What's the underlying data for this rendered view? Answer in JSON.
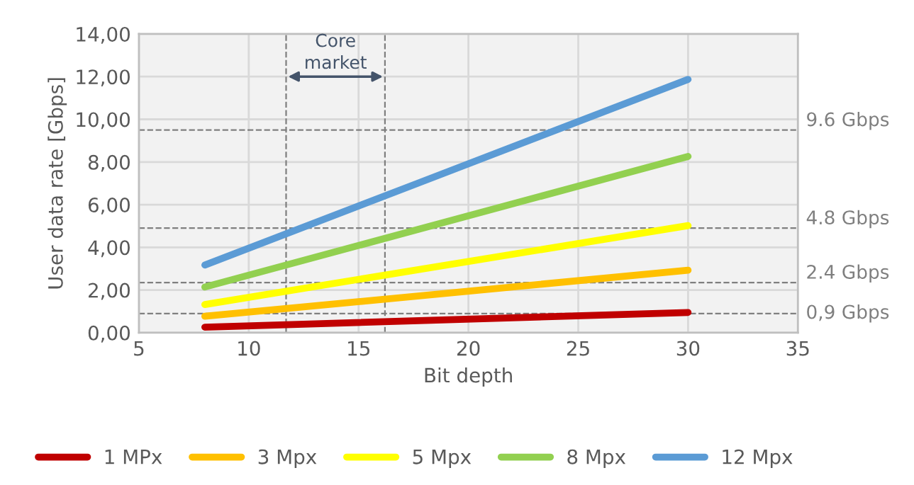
{
  "chart_data": {
    "type": "line",
    "xlabel": "Bit depth",
    "ylabel": "User data rate [Gbps]",
    "series": [
      {
        "name": "1 MPx",
        "color": "#c00000",
        "values": [
          0.26,
          0.95
        ]
      },
      {
        "name": "3 Mpx",
        "color": "#ffc000",
        "values": [
          0.77,
          2.93
        ]
      },
      {
        "name": "5 Mpx",
        "color": "#ffff00",
        "values": [
          1.32,
          5.02
        ]
      },
      {
        "name": "8 Mpx",
        "color": "#92d050",
        "values": [
          2.14,
          8.26
        ]
      },
      {
        "name": "12 Mpx",
        "color": "#5b9bd5",
        "values": [
          3.17,
          11.87
        ]
      }
    ],
    "x": [
      8,
      30
    ],
    "xlim": [
      5,
      35
    ],
    "xticks": [
      5,
      10,
      15,
      20,
      25,
      30,
      35
    ],
    "ylim": [
      0,
      14
    ],
    "yticks": [
      {
        "value": 0,
        "label": "0,00"
      },
      {
        "value": 2,
        "label": "2,00"
      },
      {
        "value": 4,
        "label": "4,00"
      },
      {
        "value": 6,
        "label": "6,00"
      },
      {
        "value": 8,
        "label": "8,00"
      },
      {
        "value": 10,
        "label": "10,00"
      },
      {
        "value": 12,
        "label": "12,00"
      },
      {
        "value": 14,
        "label": "14,00"
      }
    ],
    "ref_lines": [
      {
        "axis": "y",
        "value": 9.5,
        "label": "9.6 Gbps",
        "color": "#7f7f7f",
        "line_style": "dashed"
      },
      {
        "axis": "y",
        "value": 4.9,
        "label": "4.8 Gbps",
        "color": "#7f7f7f",
        "line_style": "dashed"
      },
      {
        "axis": "y",
        "value": 2.35,
        "label": "2.4 Gbps",
        "color": "#7f7f7f",
        "line_style": "dashed"
      },
      {
        "axis": "y",
        "value": 0.9,
        "label": "0,9 Gbps",
        "color": "#7f7f7f",
        "line_style": "dashed"
      },
      {
        "axis": "x",
        "value": 11.7,
        "color": "#7f7f7f",
        "line_style": "dashed"
      },
      {
        "axis": "x",
        "value": 16.2,
        "color": "#7f7f7f",
        "line_style": "dashed"
      }
    ],
    "annotations": [
      "Core\nmarket"
    ],
    "grid": true,
    "legend": "bottom",
    "marker": "none",
    "line_style": "solid"
  }
}
